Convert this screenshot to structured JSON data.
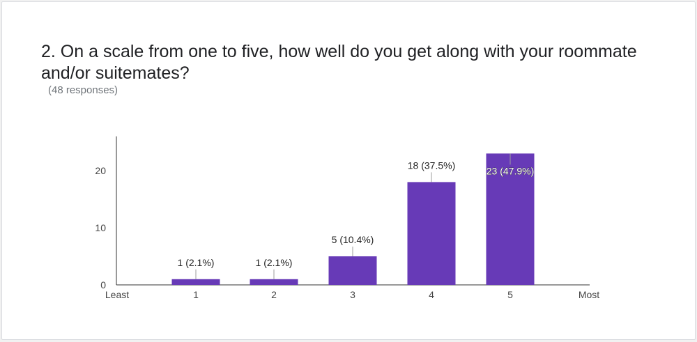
{
  "question": {
    "title": "2. On a scale from one to five, how well do you get along with your roommate and/or suitemates?",
    "responses": "(48 responses)"
  },
  "colors": {
    "bar": "#673ab7",
    "axis": "#333333",
    "connector": "#9e9e9e"
  },
  "chart_data": {
    "type": "bar",
    "categories": [
      "1",
      "2",
      "3",
      "4",
      "5"
    ],
    "values": [
      1,
      1,
      5,
      18,
      23
    ],
    "data_labels": [
      "1 (2.1%)",
      "1 (2.1%)",
      "5 (10.4%)",
      "18 (37.5%)",
      "23 (47.9%)"
    ],
    "x_end_labels": [
      "Least",
      "Most"
    ],
    "y_ticks": [
      0,
      10,
      20
    ],
    "ylim": [
      0,
      26
    ],
    "grid": false,
    "legend": "none"
  }
}
